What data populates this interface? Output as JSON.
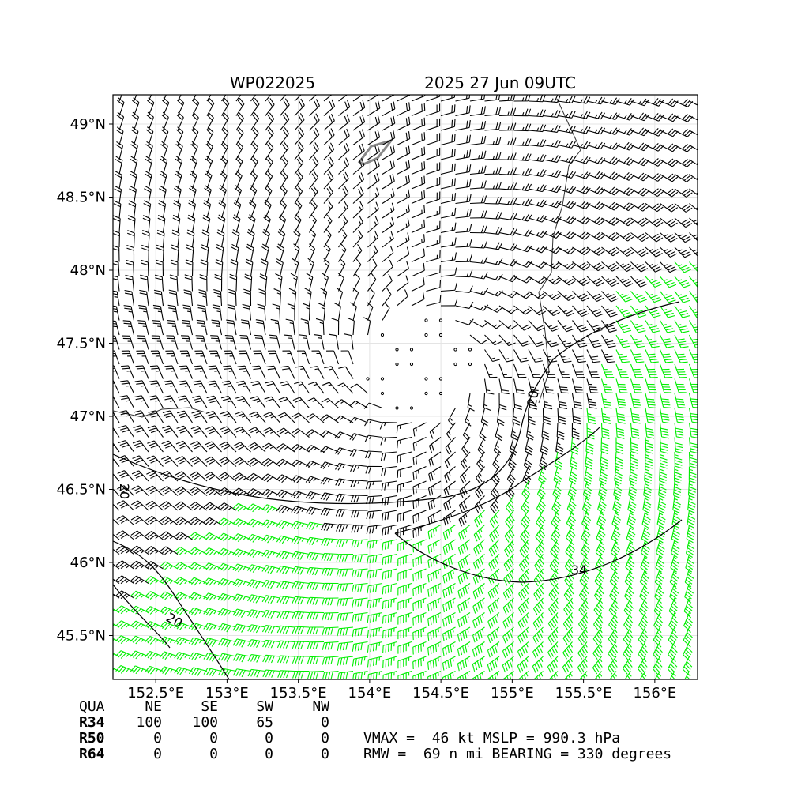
{
  "chart_data": {
    "type": "wind-barb-map",
    "title_left": "WP022025",
    "title_right": "2025 27 Jun 09UTC",
    "xlim": [
      152.2,
      156.3
    ],
    "ylim": [
      45.2,
      49.2
    ],
    "x_ticks": [
      152.5,
      153.0,
      153.5,
      154.0,
      154.5,
      155.0,
      155.5,
      156.0
    ],
    "x_tick_labels": [
      "152.5°E",
      "153°E",
      "153.5°E",
      "154°E",
      "154.5°E",
      "155°E",
      "155.5°E",
      "156°E"
    ],
    "y_ticks": [
      45.5,
      46.0,
      46.5,
      47.0,
      47.5,
      48.0,
      48.5,
      49.0
    ],
    "y_tick_labels": [
      "45.5°N",
      "46°N",
      "46.5°N",
      "47°N",
      "47.5°N",
      "48°N",
      "48.5°N",
      "49°N"
    ],
    "center": {
      "lon": 154.35,
      "lat": 47.35
    },
    "rmw_nmi": 69,
    "vmax_kt": 46,
    "barb_colors": {
      "below_34": "#000000",
      "r34": "#00ee00",
      "r50": "#e6c21a"
    },
    "contour_labels": [
      "20",
      "20",
      "34",
      "20"
    ],
    "wind_radii_table": {
      "header": [
        "QUA",
        "NE",
        "SE",
        "SW",
        "NW"
      ],
      "rows": [
        {
          "label": "R34",
          "values": [
            "100",
            "100",
            "65",
            "0"
          ]
        },
        {
          "label": "R50",
          "values": [
            "0",
            "0",
            "0",
            "0"
          ]
        },
        {
          "label": "R64",
          "values": [
            "0",
            "0",
            "0",
            "0"
          ]
        }
      ]
    },
    "summary_line_1": "VMAX =  46 kt MSLP = 990.3 hPa",
    "summary_line_2": "RMW =  69 n mi BEARING = 330 degrees"
  }
}
